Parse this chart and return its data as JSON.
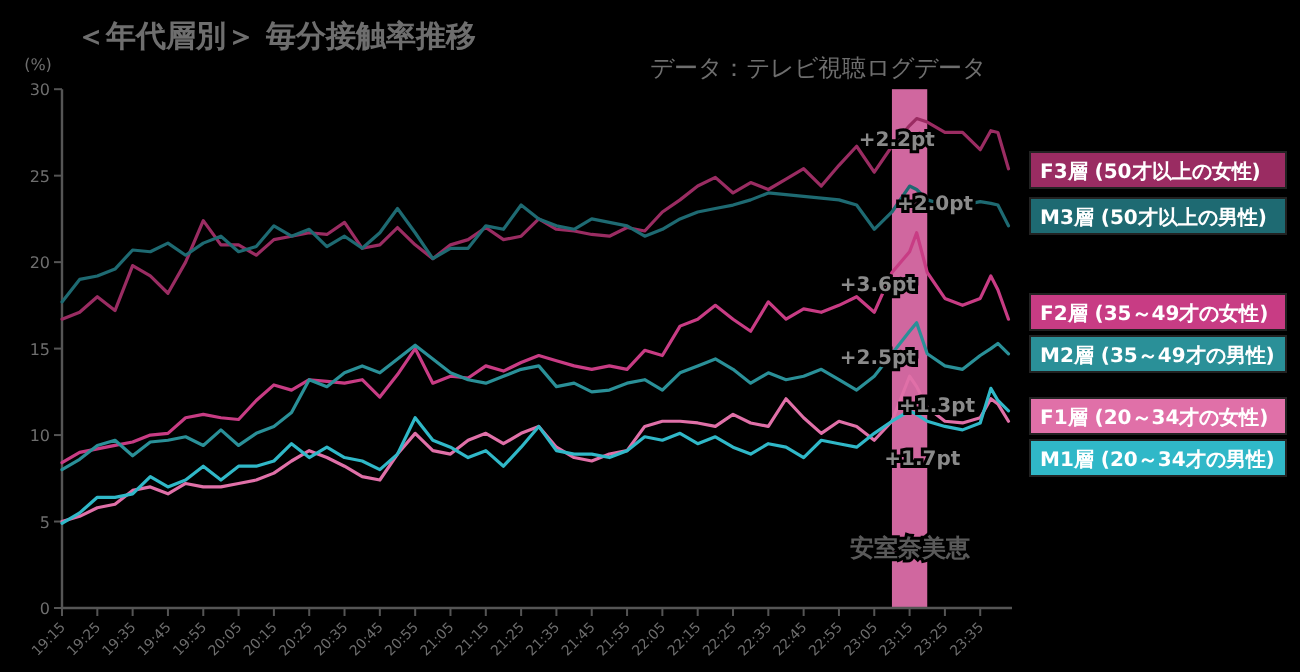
{
  "chart_data": {
    "type": "line",
    "title": "＜年代層別＞ 毎分接触率推移",
    "subtitle": "データ：テレビ視聴ログデータ",
    "ylabel": "(%)",
    "x": [
      19.25,
      19.3333,
      19.4167,
      19.5,
      19.5833,
      19.6667,
      19.75,
      19.8333,
      19.9167,
      20,
      20.0833,
      20.1667,
      20.25,
      20.3333,
      20.4167,
      20.5,
      20.5833,
      20.6667,
      20.75,
      20.8333,
      20.9167,
      21,
      21.0833,
      21.1667,
      21.25,
      21.3333,
      21.4167,
      21.5,
      21.5833,
      21.6667,
      21.75,
      21.8333,
      21.9167,
      22,
      22.0833,
      22.1667,
      22.25,
      22.3333,
      22.4167,
      22.5,
      22.5833,
      22.6667,
      22.75,
      22.8333,
      22.9167,
      23,
      23.0833,
      23.1667,
      23.25,
      23.2833,
      23.3333,
      23.4167,
      23.5,
      23.5833,
      23.6333,
      23.6667,
      23.7167
    ],
    "series": [
      {
        "name": "F3層 (50才以上の女性)",
        "color": "#9a2c62",
        "values": [
          16.7,
          17.1,
          18.0,
          17.2,
          19.8,
          19.2,
          18.2,
          20.0,
          22.4,
          21.0,
          21.0,
          20.4,
          21.3,
          21.5,
          21.7,
          21.6,
          22.3,
          20.8,
          21.0,
          22.0,
          21.0,
          20.2,
          21.0,
          21.3,
          22.0,
          21.3,
          21.5,
          22.5,
          21.9,
          21.8,
          21.6,
          21.5,
          22.0,
          21.8,
          22.9,
          23.6,
          24.4,
          24.9,
          24.0,
          24.6,
          24.2,
          24.8,
          25.4,
          24.4,
          25.6,
          26.7,
          25.2,
          26.7,
          27.9,
          28.3,
          28.1,
          27.5,
          27.5,
          26.5,
          27.6,
          27.5,
          25.4
        ]
      },
      {
        "name": "M3層 (50才以上の男性)",
        "color": "#1e6a72",
        "values": [
          17.7,
          19.0,
          19.2,
          19.6,
          20.7,
          20.6,
          21.1,
          20.4,
          21.1,
          21.5,
          20.6,
          20.9,
          22.1,
          21.5,
          21.9,
          20.9,
          21.5,
          20.8,
          21.7,
          23.1,
          21.7,
          20.2,
          20.8,
          20.8,
          22.1,
          21.9,
          23.3,
          22.5,
          22.1,
          21.9,
          22.5,
          22.3,
          22.1,
          21.5,
          21.9,
          22.5,
          22.9,
          23.1,
          23.3,
          23.6,
          24.0,
          23.9,
          23.8,
          23.7,
          23.6,
          23.3,
          21.9,
          22.9,
          24.4,
          24.2,
          23.6,
          23.3,
          23.3,
          23.5,
          23.4,
          23.3,
          22.1
        ]
      },
      {
        "name": "F2層 (35～49才の女性)",
        "color": "#c83c84",
        "values": [
          8.4,
          9.0,
          9.2,
          9.4,
          9.6,
          10.0,
          10.1,
          11.0,
          11.2,
          11.0,
          10.9,
          12.0,
          12.9,
          12.6,
          13.2,
          13.1,
          13.0,
          13.2,
          12.2,
          13.5,
          15.0,
          13.0,
          13.4,
          13.3,
          14.0,
          13.7,
          14.2,
          14.6,
          14.3,
          14.0,
          13.8,
          14.0,
          13.8,
          14.9,
          14.6,
          16.3,
          16.7,
          17.5,
          16.7,
          16.0,
          17.7,
          16.7,
          17.3,
          17.1,
          17.5,
          18.0,
          17.1,
          19.4,
          20.6,
          21.7,
          19.4,
          17.9,
          17.5,
          17.9,
          19.2,
          18.4,
          16.7
        ]
      },
      {
        "name": "M2層 (35～49才の男性)",
        "color": "#2a9098",
        "values": [
          8.0,
          8.6,
          9.4,
          9.7,
          8.8,
          9.6,
          9.7,
          9.9,
          9.4,
          10.3,
          9.4,
          10.1,
          10.5,
          11.3,
          13.2,
          12.8,
          13.6,
          14.0,
          13.6,
          14.4,
          15.2,
          14.4,
          13.6,
          13.2,
          13.0,
          13.4,
          13.8,
          14.0,
          12.8,
          13.0,
          12.5,
          12.6,
          13.0,
          13.2,
          12.6,
          13.6,
          14.0,
          14.4,
          13.8,
          13.0,
          13.6,
          13.2,
          13.4,
          13.8,
          13.2,
          12.6,
          13.4,
          14.7,
          16.0,
          16.5,
          14.7,
          14.0,
          13.8,
          14.6,
          15.0,
          15.3,
          14.7
        ]
      },
      {
        "name": "F1層 (20～34才の女性)",
        "color": "#e070a8",
        "values": [
          5.0,
          5.3,
          5.8,
          6.0,
          6.8,
          7.0,
          6.6,
          7.2,
          7.0,
          7.0,
          7.2,
          7.4,
          7.8,
          8.5,
          9.1,
          8.7,
          8.2,
          7.6,
          7.4,
          8.9,
          10.1,
          9.1,
          8.9,
          9.7,
          10.1,
          9.5,
          10.1,
          10.5,
          9.3,
          8.7,
          8.5,
          8.9,
          9.1,
          10.5,
          10.8,
          10.8,
          10.7,
          10.5,
          11.2,
          10.7,
          10.5,
          12.1,
          11.0,
          10.1,
          10.8,
          10.5,
          9.7,
          10.8,
          13.4,
          12.8,
          11.6,
          10.8,
          10.7,
          11.0,
          12.1,
          11.8,
          10.8
        ]
      },
      {
        "name": "M1層 (20～34才の男性)",
        "color": "#30b8c8",
        "values": [
          4.9,
          5.5,
          6.4,
          6.4,
          6.6,
          7.6,
          7.0,
          7.4,
          8.2,
          7.4,
          8.2,
          8.2,
          8.5,
          9.5,
          8.7,
          9.3,
          8.7,
          8.5,
          8.0,
          8.9,
          11.0,
          9.7,
          9.3,
          8.7,
          9.1,
          8.2,
          9.3,
          10.5,
          9.1,
          8.9,
          8.9,
          8.7,
          9.1,
          9.9,
          9.7,
          10.1,
          9.5,
          9.9,
          9.3,
          8.9,
          9.5,
          9.3,
          8.7,
          9.7,
          9.5,
          9.3,
          10.1,
          10.8,
          11.4,
          11.2,
          10.8,
          10.5,
          10.3,
          10.7,
          12.7,
          12.0,
          11.4
        ]
      }
    ],
    "xlim": [
      19.25,
      23.7333
    ],
    "ylim": [
      0,
      30
    ],
    "yticks": [
      0,
      5,
      10,
      15,
      20,
      25,
      30
    ],
    "xticks": [
      {
        "value": 19.25,
        "label": "19:15"
      },
      {
        "value": 19.4167,
        "label": "19:25"
      },
      {
        "value": 19.5833,
        "label": "19:35"
      },
      {
        "value": 19.75,
        "label": "19:45"
      },
      {
        "value": 19.9167,
        "label": "19:55"
      },
      {
        "value": 20.0833,
        "label": "20:05"
      },
      {
        "value": 20.25,
        "label": "20:15"
      },
      {
        "value": 20.4167,
        "label": "20:25"
      },
      {
        "value": 20.5833,
        "label": "20:35"
      },
      {
        "value": 20.75,
        "label": "20:45"
      },
      {
        "value": 20.9167,
        "label": "20:55"
      },
      {
        "value": 21.0833,
        "label": "21:05"
      },
      {
        "value": 21.25,
        "label": "21:15"
      },
      {
        "value": 21.4167,
        "label": "21:25"
      },
      {
        "value": 21.5833,
        "label": "21:35"
      },
      {
        "value": 21.75,
        "label": "21:45"
      },
      {
        "value": 21.9167,
        "label": "21:55"
      },
      {
        "value": 22.0833,
        "label": "22:05"
      },
      {
        "value": 22.25,
        "label": "22:15"
      },
      {
        "value": 22.4167,
        "label": "22:25"
      },
      {
        "value": 22.5833,
        "label": "22:35"
      },
      {
        "value": 22.75,
        "label": "22:45"
      },
      {
        "value": 22.9167,
        "label": "22:55"
      },
      {
        "value": 23.0833,
        "label": "23:05"
      },
      {
        "value": 23.25,
        "label": "23:15"
      },
      {
        "value": 23.4167,
        "label": "23:25"
      },
      {
        "value": 23.5833,
        "label": "23:35"
      }
    ],
    "bands": [
      {
        "axis": "x",
        "from": 23.1667,
        "to": 23.3333,
        "label": "安室奈美恵",
        "color": "#d0679f"
      }
    ],
    "annotations": [
      {
        "text": "+2.2pt",
        "x": 23.19,
        "y": 27.2
      },
      {
        "text": "+2.0pt",
        "x": 23.37,
        "y": 23.5
      },
      {
        "text": "+3.6pt",
        "x": 23.1,
        "y": 18.8
      },
      {
        "text": "+2.5pt",
        "x": 23.1,
        "y": 14.6
      },
      {
        "text": "+1.3pt",
        "x": 23.38,
        "y": 11.8
      },
      {
        "text": "+1.7pt",
        "x": 23.31,
        "y": 8.75
      }
    ],
    "grid": false,
    "legend": "right",
    "marker": "none",
    "line_style": "solid"
  }
}
